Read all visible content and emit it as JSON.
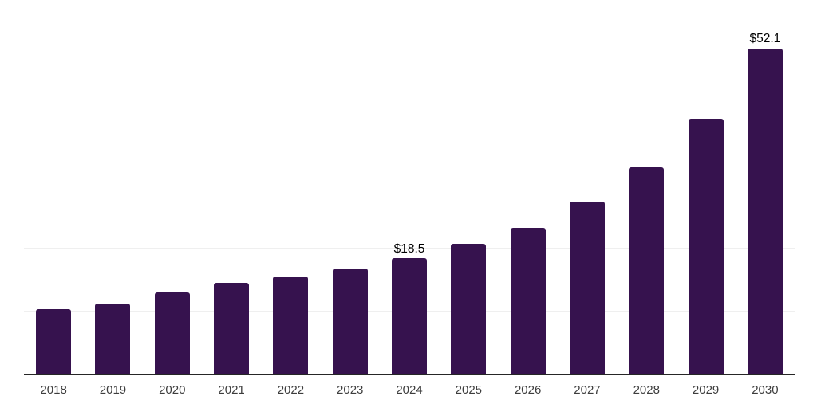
{
  "chart_data": {
    "type": "bar",
    "title": "",
    "xlabel": "",
    "ylabel": "",
    "categories": [
      "2018",
      "2019",
      "2020",
      "2021",
      "2022",
      "2023",
      "2024",
      "2025",
      "2026",
      "2027",
      "2028",
      "2029",
      "2030"
    ],
    "values": [
      10.4,
      11.2,
      13.0,
      14.6,
      15.6,
      16.8,
      18.5,
      20.8,
      23.4,
      27.6,
      33.1,
      40.9,
      52.1
    ],
    "data_labels": [
      "",
      "",
      "",
      "",
      "",
      "",
      "$18.5",
      "",
      "",
      "",
      "",
      "",
      "$52.1"
    ],
    "ylim": [
      0,
      60
    ],
    "gridline_step": 10,
    "grid": true,
    "legend": false,
    "colors": {
      "bar": "#36124E",
      "gridline": "#efefef",
      "axis": "#262626",
      "tick_label": "#3d3d3d",
      "data_label": "#000000",
      "background": "#ffffff"
    }
  }
}
